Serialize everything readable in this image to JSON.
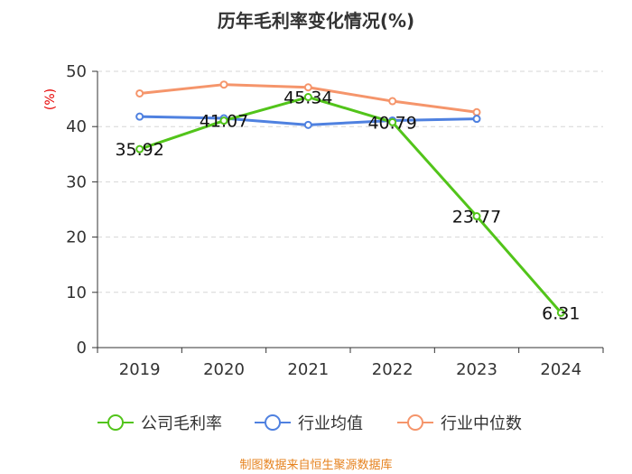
{
  "chart_data": {
    "type": "line",
    "title": "历年毛利率变化情况(%)",
    "ylabel": "(%)",
    "categories": [
      "2019",
      "2020",
      "2021",
      "2022",
      "2023",
      "2024"
    ],
    "ylim": [
      0,
      50
    ],
    "yticks": [
      0,
      10,
      20,
      30,
      40,
      50
    ],
    "grid": true,
    "legend_position": "bottom",
    "series": [
      {
        "name": "公司毛利率",
        "color": "#52c41a",
        "values": [
          35.92,
          41.07,
          45.34,
          40.79,
          23.77,
          6.31
        ],
        "labels": [
          "35.92",
          "41.07",
          "45.34",
          "40.79",
          "23.77",
          "6.31"
        ]
      },
      {
        "name": "行业均值",
        "color": "#4f81e0",
        "values": [
          41.8,
          41.5,
          40.3,
          41.1,
          41.4,
          null
        ],
        "labels": []
      },
      {
        "name": "行业中位数",
        "color": "#f5956b",
        "values": [
          46.0,
          47.6,
          47.1,
          44.6,
          42.6,
          null
        ],
        "labels": []
      }
    ]
  },
  "source_text": "制图数据来自恒生聚源数据库"
}
